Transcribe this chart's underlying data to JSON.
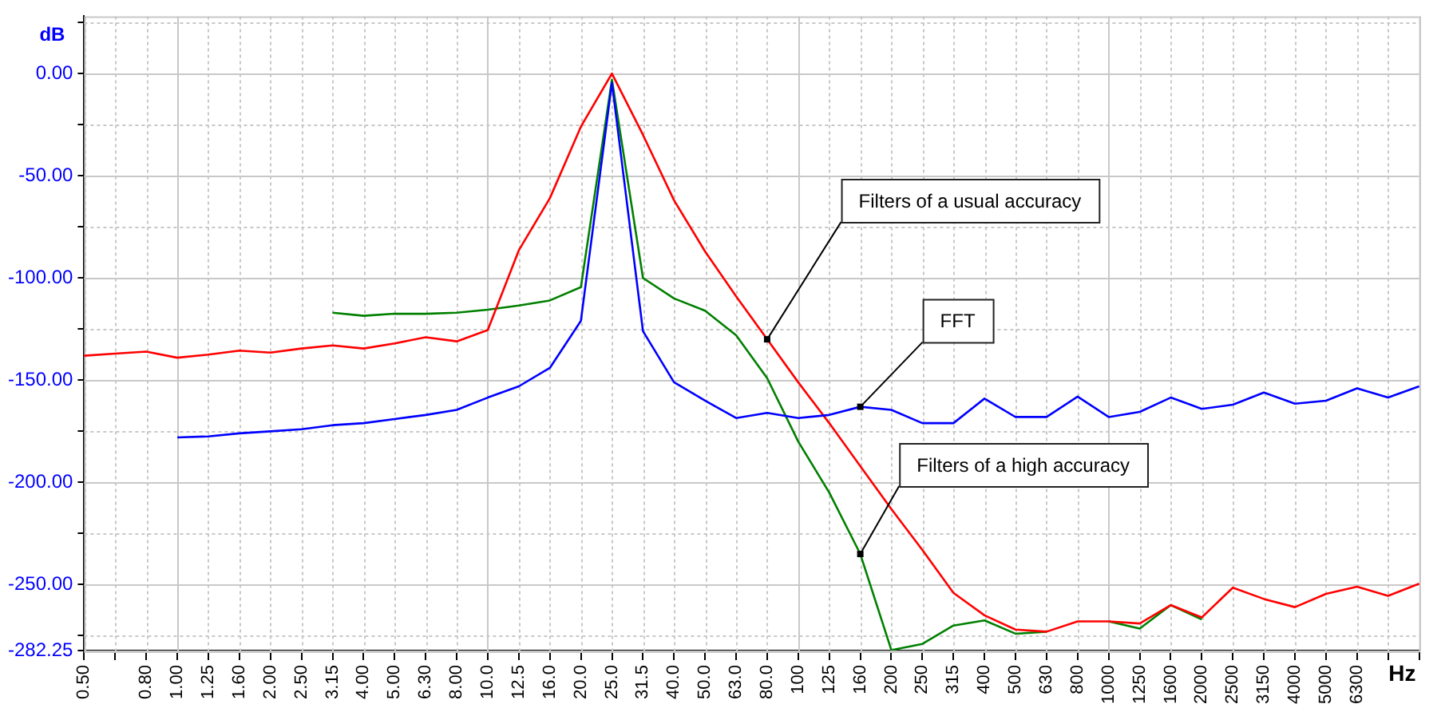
{
  "chart_data": {
    "type": "line",
    "ylabel": "dB",
    "xlabel": "Hz",
    "categories": [
      "0.50",
      null,
      "0.80",
      "1.00",
      "1.25",
      "1.60",
      "2.00",
      "2.50",
      "3.15",
      "4.00",
      "5.00",
      "6.30",
      "8.00",
      "10.0",
      "12.5",
      "16.0",
      "20.0",
      "25.0",
      "31.5",
      "40.0",
      "50.0",
      "63.0",
      "80.0",
      "100",
      "125",
      "160",
      "200",
      "250",
      "315",
      "400",
      "500",
      "630",
      "800",
      "1000",
      "1250",
      "1600",
      "2000",
      "2500",
      "3150",
      "4000",
      "5000",
      "6300",
      null,
      null
    ],
    "series": [
      {
        "color": "#008000",
        "values": [
          null,
          null,
          null,
          null,
          null,
          null,
          null,
          null,
          -117,
          -118.5,
          -117.5,
          -117.5,
          -117,
          -115.5,
          -113.5,
          -111,
          -104.5,
          -3,
          -100,
          -110,
          -116,
          -128,
          -149,
          -180,
          -205,
          -235,
          -282,
          -279,
          -270,
          -267.5,
          -274,
          -273,
          null,
          -268,
          -271.5,
          -260,
          -267,
          null,
          null,
          null,
          null,
          null,
          null,
          null
        ]
      },
      {
        "color": "#ff0000",
        "values": [
          -138,
          -137,
          -136,
          -139,
          -137.5,
          -135.5,
          -136.5,
          -134.5,
          -133,
          -134.5,
          -132,
          -129,
          -131,
          -125.5,
          -86.5,
          -61,
          -26,
          0,
          -30,
          -62,
          -87,
          -109,
          -130,
          -151,
          -171,
          -192,
          -213,
          -233,
          -254,
          -265,
          -272,
          -273,
          -268,
          -268,
          -269,
          -260,
          -266,
          -251.5,
          -257,
          -261,
          -254.5,
          -251,
          -255.5,
          -249.5
        ]
      },
      {
        "color": "#0000ff",
        "values": [
          null,
          null,
          null,
          -178,
          -177.5,
          -176,
          -175,
          -174,
          -172,
          -171,
          -169,
          -167,
          -164.5,
          -158.5,
          -153,
          -144,
          -121,
          -4.5,
          -126,
          -151,
          -160,
          -168.5,
          -166,
          -168.5,
          -167,
          -163,
          -164.5,
          -171,
          -171,
          -159,
          -168,
          -168,
          -158,
          -168,
          -165.5,
          -158.5,
          -164,
          -162,
          -156,
          -161.5,
          -160,
          -154,
          -158.5,
          -153
        ]
      }
    ],
    "ylim": [
      -282.25,
      28
    ],
    "yticks": [
      {
        "value": 25,
        "label": null
      },
      {
        "value": 0,
        "label": "0.00"
      },
      {
        "value": -25,
        "label": null
      },
      {
        "value": -50,
        "label": "-50.00"
      },
      {
        "value": -75,
        "label": null
      },
      {
        "value": -100,
        "label": "-100.00"
      },
      {
        "value": -125,
        "label": null
      },
      {
        "value": -150,
        "label": "-150.00"
      },
      {
        "value": -175,
        "label": null
      },
      {
        "value": -200,
        "label": "-200.00"
      },
      {
        "value": -225,
        "label": null
      },
      {
        "value": -250,
        "label": "-250.00"
      },
      {
        "value": -275,
        "label": null
      },
      -282.25
    ],
    "grid": true,
    "annotations": [
      {
        "text": "Filters of a usual accuracy",
        "x": "80.0",
        "y": -130
      },
      {
        "text": "FFT",
        "x": "160",
        "y": -163
      },
      {
        "text": "Filters of a high accuracy",
        "x": "160",
        "y": -235
      }
    ]
  }
}
